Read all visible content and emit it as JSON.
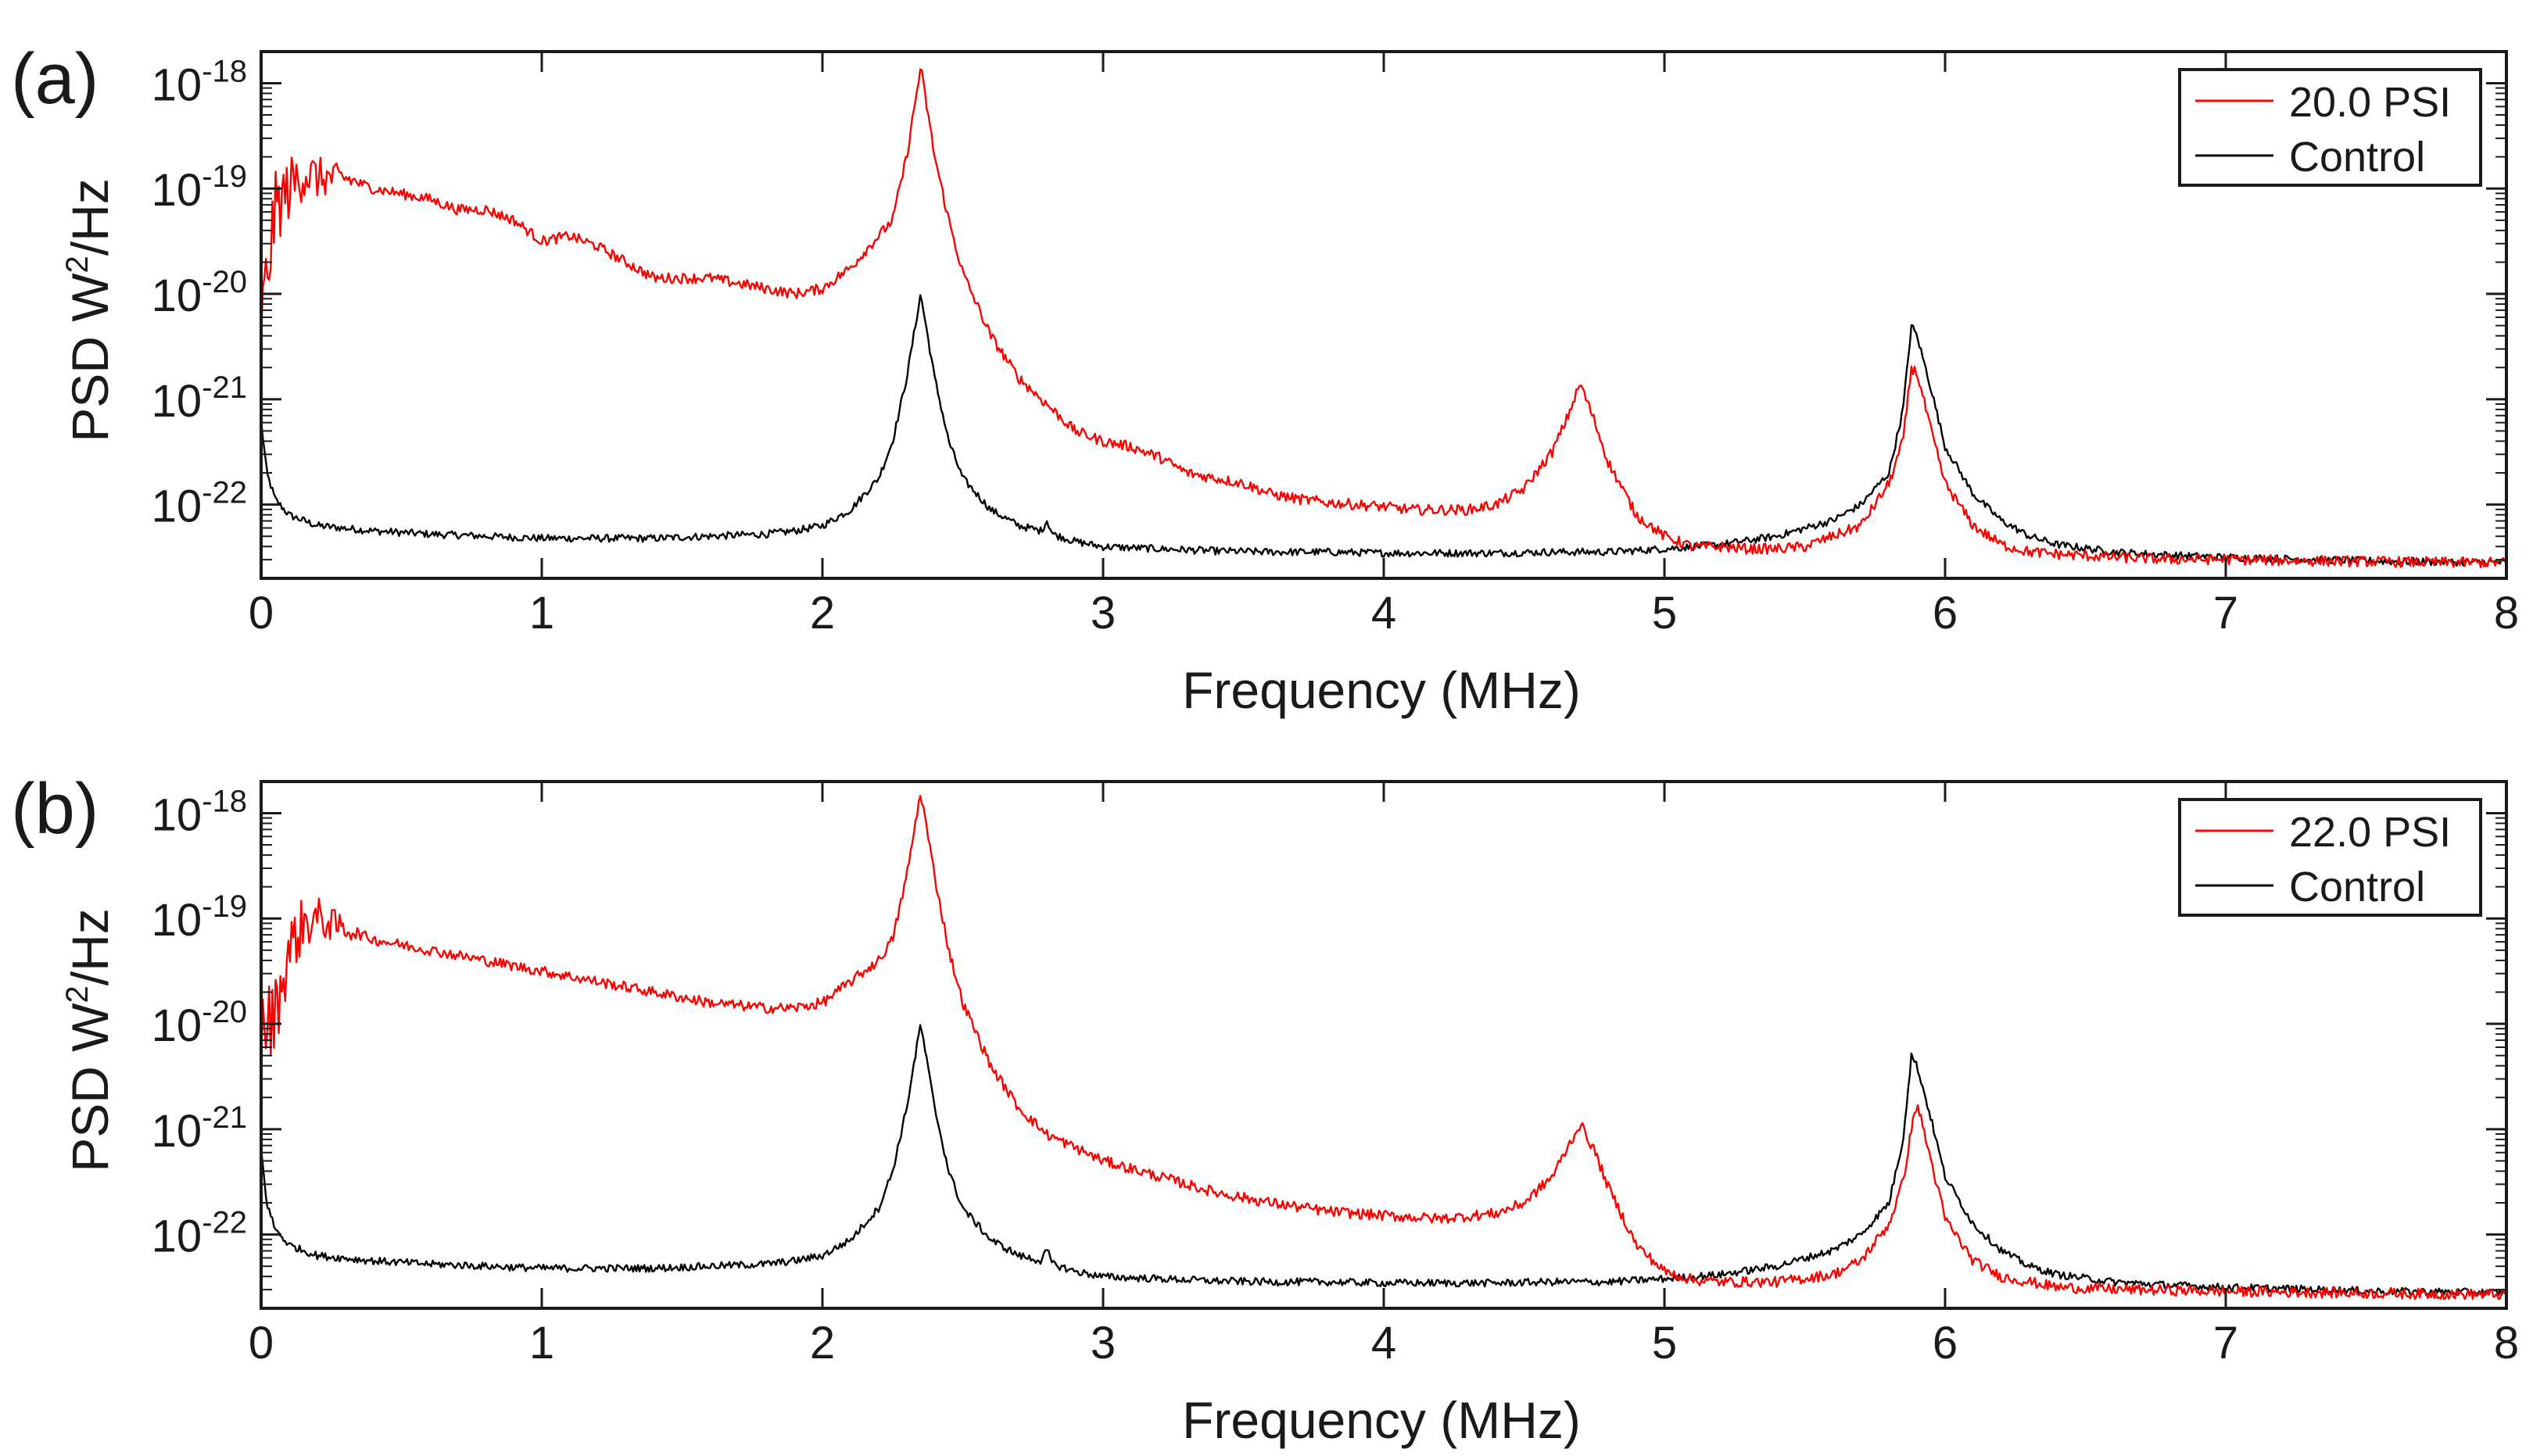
{
  "figure": {
    "type": "two-panel power spectral density plot"
  },
  "chart_data": [
    {
      "type": "line",
      "panel_label": "(a)",
      "xlabel": "Frequency (MHz)",
      "ylabel_base": "PSD W",
      "ylabel_sup": "2",
      "ylabel_tail": "/Hz",
      "xlim": [
        0,
        8
      ],
      "ylim_log10": [
        -22.7,
        -17.7
      ],
      "y_scale": "log",
      "x_ticks": [
        0,
        1,
        2,
        3,
        4,
        5,
        6,
        7,
        8
      ],
      "x_tick_labels": [
        "0",
        "1",
        "2",
        "3",
        "4",
        "5",
        "6",
        "7",
        "8"
      ],
      "y_ticks": [
        {
          "base": "10",
          "exp": "-22",
          "value": -22
        },
        {
          "base": "10",
          "exp": "-21",
          "value": -21
        },
        {
          "base": "10",
          "exp": "-20",
          "value": -20
        },
        {
          "base": "10",
          "exp": "-19",
          "value": -19
        },
        {
          "base": "10",
          "exp": "-18",
          "value": -18
        }
      ],
      "legend_position": "top-right",
      "series": [
        {
          "name": "20.0 PSI",
          "color": "#ff0000",
          "x": [
            0.0,
            0.05,
            0.1,
            0.15,
            0.2,
            0.3,
            0.4,
            0.5,
            0.6,
            0.7,
            0.8,
            0.9,
            1.0,
            1.1,
            1.2,
            1.3,
            1.4,
            1.5,
            1.6,
            1.7,
            1.8,
            1.9,
            2.0,
            2.1,
            2.2,
            2.25,
            2.3,
            2.35,
            2.4,
            2.45,
            2.5,
            2.6,
            2.7,
            2.8,
            2.9,
            3.0,
            3.1,
            3.2,
            3.3,
            3.4,
            3.5,
            3.6,
            3.7,
            3.8,
            3.9,
            4.0,
            4.1,
            4.2,
            4.3,
            4.4,
            4.5,
            4.6,
            4.65,
            4.7,
            4.75,
            4.8,
            4.9,
            5.0,
            5.1,
            5.2,
            5.3,
            5.4,
            5.5,
            5.6,
            5.7,
            5.8,
            5.85,
            5.88,
            5.9,
            5.95,
            6.0,
            6.1,
            6.2,
            6.3,
            6.4,
            6.6,
            6.8,
            7.0,
            7.2,
            7.5,
            7.8,
            8.0
          ],
          "log10_values": [
            -20.3,
            -19.2,
            -19.0,
            -18.85,
            -18.9,
            -18.9,
            -19.0,
            -19.05,
            -19.1,
            -19.2,
            -19.2,
            -19.3,
            -19.5,
            -19.45,
            -19.55,
            -19.7,
            -19.85,
            -19.85,
            -19.85,
            -19.9,
            -19.95,
            -20.0,
            -19.95,
            -19.75,
            -19.45,
            -19.3,
            -18.7,
            -17.85,
            -18.7,
            -19.3,
            -19.8,
            -20.4,
            -20.8,
            -21.05,
            -21.3,
            -21.4,
            -21.45,
            -21.55,
            -21.7,
            -21.75,
            -21.8,
            -21.9,
            -21.95,
            -21.98,
            -22.0,
            -22.02,
            -22.05,
            -22.05,
            -22.05,
            -22.0,
            -21.85,
            -21.5,
            -21.2,
            -20.85,
            -21.2,
            -21.6,
            -22.1,
            -22.3,
            -22.4,
            -22.4,
            -22.42,
            -22.42,
            -22.4,
            -22.3,
            -22.2,
            -21.8,
            -21.4,
            -20.7,
            -20.75,
            -21.3,
            -21.8,
            -22.2,
            -22.38,
            -22.45,
            -22.47,
            -22.5,
            -22.52,
            -22.52,
            -22.53,
            -22.54,
            -22.55,
            -22.55
          ]
        },
        {
          "name": "Control",
          "color": "#000000",
          "x": [
            0.0,
            0.02,
            0.05,
            0.1,
            0.2,
            0.4,
            0.6,
            0.8,
            1.0,
            1.2,
            1.4,
            1.6,
            1.8,
            1.9,
            2.0,
            2.1,
            2.2,
            2.25,
            2.3,
            2.35,
            2.4,
            2.45,
            2.5,
            2.6,
            2.7,
            2.78,
            2.8,
            2.82,
            2.9,
            3.0,
            3.2,
            3.4,
            3.6,
            3.8,
            4.0,
            4.2,
            4.4,
            4.6,
            4.8,
            5.0,
            5.2,
            5.4,
            5.6,
            5.7,
            5.8,
            5.85,
            5.88,
            5.9,
            5.95,
            6.0,
            6.1,
            6.2,
            6.3,
            6.4,
            6.6,
            6.8,
            7.0,
            7.3,
            7.6,
            8.0
          ],
          "log10_values": [
            -21.2,
            -21.7,
            -21.95,
            -22.1,
            -22.2,
            -22.25,
            -22.28,
            -22.3,
            -22.32,
            -22.32,
            -22.32,
            -22.3,
            -22.28,
            -22.25,
            -22.2,
            -22.05,
            -21.75,
            -21.4,
            -20.8,
            -20.0,
            -20.8,
            -21.4,
            -21.75,
            -22.05,
            -22.2,
            -22.25,
            -22.15,
            -22.28,
            -22.35,
            -22.4,
            -22.42,
            -22.44,
            -22.45,
            -22.45,
            -22.46,
            -22.46,
            -22.46,
            -22.45,
            -22.45,
            -22.42,
            -22.38,
            -22.3,
            -22.15,
            -22.0,
            -21.7,
            -21.1,
            -20.3,
            -20.4,
            -20.9,
            -21.45,
            -21.9,
            -22.15,
            -22.3,
            -22.38,
            -22.45,
            -22.48,
            -22.5,
            -22.52,
            -22.54,
            -22.55
          ]
        }
      ]
    },
    {
      "type": "line",
      "panel_label": "(b)",
      "xlabel": "Frequency (MHz)",
      "ylabel_base": "PSD W",
      "ylabel_sup": "2",
      "ylabel_tail": "/Hz",
      "xlim": [
        0,
        8
      ],
      "ylim_log10": [
        -22.7,
        -17.7
      ],
      "y_scale": "log",
      "x_ticks": [
        0,
        1,
        2,
        3,
        4,
        5,
        6,
        7,
        8
      ],
      "x_tick_labels": [
        "0",
        "1",
        "2",
        "3",
        "4",
        "5",
        "6",
        "7",
        "8"
      ],
      "y_ticks": [
        {
          "base": "10",
          "exp": "-22",
          "value": -22
        },
        {
          "base": "10",
          "exp": "-21",
          "value": -21
        },
        {
          "base": "10",
          "exp": "-20",
          "value": -20
        },
        {
          "base": "10",
          "exp": "-19",
          "value": -19
        },
        {
          "base": "10",
          "exp": "-18",
          "value": -18
        }
      ],
      "legend_position": "top-right",
      "series": [
        {
          "name": "22.0 PSI",
          "color": "#ff0000",
          "x": [
            0.0,
            0.05,
            0.1,
            0.15,
            0.2,
            0.3,
            0.4,
            0.5,
            0.6,
            0.8,
            1.0,
            1.2,
            1.4,
            1.6,
            1.8,
            1.9,
            2.0,
            2.1,
            2.2,
            2.25,
            2.3,
            2.35,
            2.4,
            2.45,
            2.5,
            2.6,
            2.7,
            2.8,
            3.0,
            3.2,
            3.4,
            3.6,
            3.8,
            4.0,
            4.2,
            4.4,
            4.5,
            4.6,
            4.65,
            4.7,
            4.75,
            4.8,
            4.9,
            5.0,
            5.1,
            5.2,
            5.4,
            5.6,
            5.7,
            5.8,
            5.85,
            5.88,
            5.9,
            5.95,
            6.0,
            6.1,
            6.2,
            6.4,
            6.6,
            6.8,
            7.0,
            7.3,
            7.6,
            8.0
          ],
          "log10_values": [
            -20.1,
            -19.9,
            -19.3,
            -19.05,
            -19.0,
            -19.1,
            -19.2,
            -19.25,
            -19.3,
            -19.4,
            -19.5,
            -19.6,
            -19.7,
            -19.8,
            -19.85,
            -19.85,
            -19.8,
            -19.6,
            -19.4,
            -19.2,
            -18.6,
            -17.8,
            -18.6,
            -19.3,
            -19.8,
            -20.4,
            -20.8,
            -21.05,
            -21.3,
            -21.45,
            -21.6,
            -21.7,
            -21.78,
            -21.82,
            -21.85,
            -21.8,
            -21.7,
            -21.45,
            -21.2,
            -20.95,
            -21.2,
            -21.55,
            -22.1,
            -22.35,
            -22.43,
            -22.45,
            -22.45,
            -22.38,
            -22.25,
            -21.9,
            -21.5,
            -21.0,
            -20.75,
            -21.3,
            -21.85,
            -22.25,
            -22.4,
            -22.5,
            -22.52,
            -22.53,
            -22.54,
            -22.55,
            -22.56,
            -22.57
          ]
        },
        {
          "name": "Control",
          "color": "#000000",
          "x": [
            0.0,
            0.02,
            0.05,
            0.1,
            0.2,
            0.4,
            0.6,
            0.8,
            1.0,
            1.2,
            1.4,
            1.6,
            1.8,
            1.9,
            2.0,
            2.1,
            2.2,
            2.25,
            2.3,
            2.35,
            2.4,
            2.45,
            2.5,
            2.6,
            2.7,
            2.78,
            2.8,
            2.82,
            2.9,
            3.0,
            3.2,
            3.4,
            3.6,
            3.8,
            4.0,
            4.2,
            4.4,
            4.6,
            4.8,
            5.0,
            5.2,
            5.4,
            5.6,
            5.7,
            5.8,
            5.85,
            5.88,
            5.9,
            5.95,
            6.0,
            6.1,
            6.2,
            6.3,
            6.4,
            6.6,
            6.8,
            7.0,
            7.3,
            7.6,
            8.0
          ],
          "log10_values": [
            -21.2,
            -21.7,
            -21.95,
            -22.1,
            -22.2,
            -22.25,
            -22.28,
            -22.3,
            -22.32,
            -22.32,
            -22.32,
            -22.3,
            -22.28,
            -22.25,
            -22.2,
            -22.05,
            -21.75,
            -21.4,
            -20.8,
            -20.0,
            -20.8,
            -21.4,
            -21.75,
            -22.05,
            -22.2,
            -22.25,
            -22.15,
            -22.28,
            -22.35,
            -22.4,
            -22.42,
            -22.44,
            -22.45,
            -22.45,
            -22.46,
            -22.46,
            -22.46,
            -22.45,
            -22.45,
            -22.42,
            -22.38,
            -22.3,
            -22.15,
            -22.0,
            -21.7,
            -21.1,
            -20.3,
            -20.4,
            -20.9,
            -21.45,
            -21.9,
            -22.15,
            -22.3,
            -22.38,
            -22.45,
            -22.48,
            -22.5,
            -22.52,
            -22.54,
            -22.55
          ]
        }
      ]
    }
  ]
}
